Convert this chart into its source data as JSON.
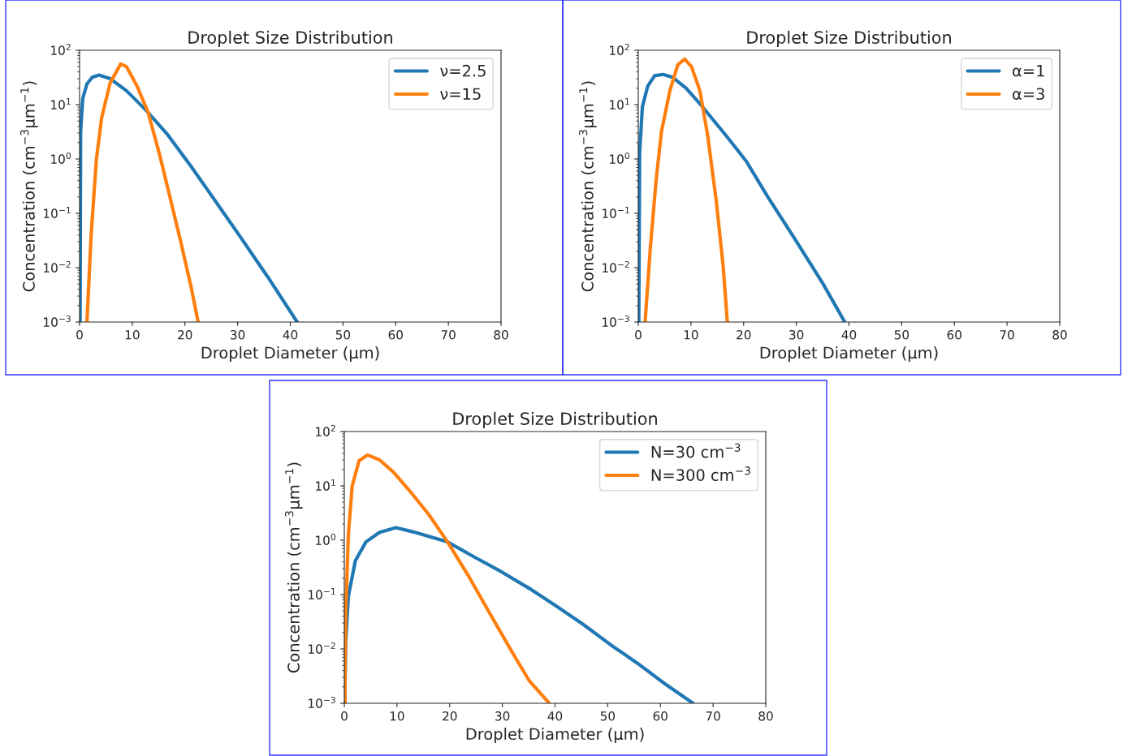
{
  "chart_data": [
    {
      "type": "line",
      "title": "Droplet Size Distribution",
      "xlabel": "Droplet Diameter (μm)",
      "ylabel": "Concentration (cm$^{−3}$μm$^{−1}$)",
      "log": "y",
      "grid": false,
      "legend": "top right",
      "xlim": [
        0,
        80
      ],
      "xticks": [
        0,
        10,
        20,
        30,
        40,
        50,
        60,
        70,
        80
      ],
      "ylim": [
        0.001,
        100
      ],
      "yticks": [
        {
          "value": 0.001,
          "label": "10$^{−3}$"
        },
        {
          "value": 0.01,
          "label": "10$^{−2}$"
        },
        {
          "value": 0.1,
          "label": "10$^{−1}$"
        },
        {
          "value": 1,
          "label": "10$^{0}$"
        },
        {
          "value": 10,
          "label": "10$^{1}$"
        },
        {
          "value": 100,
          "label": "10$^{2}$"
        }
      ],
      "series": [
        {
          "name": "ν=2.5",
          "color": "#1f77b4",
          "x": [
            0.1,
            0.2,
            0.6,
            1.4,
            2.4,
            3.7,
            5.8,
            8.9,
            12.5,
            16.6,
            21.2,
            25.4,
            30.5,
            35.7,
            41.3
          ],
          "values": [
            0.001,
            3.2,
            13,
            24,
            32,
            35,
            30,
            18,
            8.1,
            2.9,
            0.72,
            0.19,
            0.037,
            0.0068,
            0.001
          ]
        },
        {
          "name": "ν=15",
          "color": "#ff7f0e",
          "x": [
            1.4,
            2.2,
            3.2,
            4.2,
            5.8,
            7.8,
            8.9,
            10.9,
            13.0,
            15.1,
            17.1,
            19.2,
            21.2,
            22.5
          ],
          "values": [
            0.001,
            0.041,
            1.0,
            5.8,
            25,
            56,
            50,
            22,
            7.2,
            1.3,
            0.21,
            0.03,
            0.0043,
            0.001
          ]
        }
      ]
    },
    {
      "type": "line",
      "title": "Droplet Size Distribution",
      "xlabel": "Droplet Diameter (μm)",
      "ylabel": "Concentration (cm$^{−3}$μm$^{−1}$)",
      "log": "y",
      "grid": false,
      "legend": "top right",
      "xlim": [
        0,
        80
      ],
      "xticks": [
        0,
        10,
        20,
        30,
        40,
        50,
        60,
        70,
        80
      ],
      "ylim": [
        0.001,
        100
      ],
      "yticks": [
        {
          "value": 0.001,
          "label": "10$^{−3}$"
        },
        {
          "value": 0.01,
          "label": "10$^{−2}$"
        },
        {
          "value": 0.1,
          "label": "10$^{−1}$"
        },
        {
          "value": 1,
          "label": "10$^{0}$"
        },
        {
          "value": 10,
          "label": "10$^{1}$"
        },
        {
          "value": 100,
          "label": "10$^{2}$"
        }
      ],
      "series": [
        {
          "name": "α=1",
          "color": "#1f77b4",
          "x": [
            0.1,
            0.26,
            0.78,
            1.8,
            3.1,
            4.7,
            6.5,
            9.1,
            12.2,
            16.8,
            20.5,
            24.6,
            29.8,
            35.0,
            39.2
          ],
          "values": [
            0.001,
            1.3,
            9.1,
            22,
            34,
            36,
            32,
            20,
            9.1,
            2.6,
            0.91,
            0.2,
            0.033,
            0.0052,
            0.001
          ]
        },
        {
          "name": "α=3",
          "color": "#ff7f0e",
          "x": [
            1.3,
            2.3,
            3.4,
            4.4,
            6.0,
            7.5,
            8.8,
            10.1,
            11.7,
            13.2,
            14.8,
            16.1,
            16.9
          ],
          "values": [
            0.001,
            0.024,
            0.42,
            3.2,
            18,
            54,
            69,
            50,
            18,
            2.6,
            0.17,
            0.011,
            0.001
          ]
        }
      ]
    },
    {
      "type": "line",
      "title": "Droplet Size Distribution",
      "xlabel": "Droplet Diameter (μm)",
      "ylabel": "Concentration (cm$^{−3}$μm$^{−1}$)",
      "log": "y",
      "grid": false,
      "legend": "top right",
      "xlim": [
        0,
        80
      ],
      "xticks": [
        0,
        10,
        20,
        30,
        40,
        50,
        60,
        70,
        80
      ],
      "ylim": [
        0.001,
        100
      ],
      "yticks": [
        {
          "value": 0.001,
          "label": "10$^{−3}$"
        },
        {
          "value": 0.01,
          "label": "10$^{−2}$"
        },
        {
          "value": 0.1,
          "label": "10$^{−1}$"
        },
        {
          "value": 1,
          "label": "10$^{0}$"
        },
        {
          "value": 10,
          "label": "10$^{1}$"
        },
        {
          "value": 100,
          "label": "10$^{2}$"
        }
      ],
      "series": [
        {
          "name": "N=30 cm$^{−3}$",
          "color": "#1f77b4",
          "x": [
            0.1,
            0.26,
            0.77,
            2.1,
            4.1,
            6.7,
            9.8,
            13.4,
            19.6,
            24.7,
            29.9,
            35.1,
            40.2,
            45.4,
            50.5,
            55.7,
            60.8,
            66.2
          ],
          "values": [
            0.001,
            0.013,
            0.093,
            0.42,
            0.93,
            1.4,
            1.7,
            1.4,
            0.93,
            0.49,
            0.26,
            0.13,
            0.062,
            0.028,
            0.012,
            0.0054,
            0.0023,
            0.001
          ]
        },
        {
          "name": "N=300 cm$^{−3}$",
          "color": "#ff7f0e",
          "x": [
            0.1,
            0.26,
            0.77,
            1.5,
            2.8,
            4.4,
            6.7,
            9.3,
            12.4,
            16.0,
            19.6,
            23.7,
            27.8,
            32.0,
            35.1,
            38.9
          ],
          "values": [
            0.001,
            0.043,
            1.3,
            10,
            29,
            37,
            30,
            18,
            8.1,
            3.0,
            0.93,
            0.21,
            0.042,
            0.0083,
            0.0026,
            0.001
          ]
        }
      ]
    }
  ]
}
